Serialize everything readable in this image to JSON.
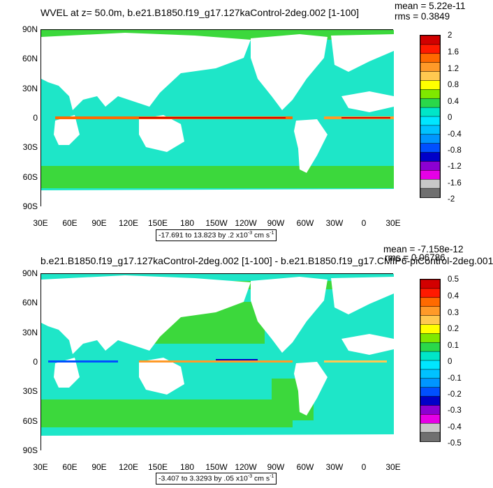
{
  "panels": [
    {
      "title": "WVEL at z=  50.0m, b.e21.B1850.f19_g17.127kaControl-2deg.002 [1-100]",
      "mean": "mean = 5.22e-11",
      "rms": "rms = 0.3849",
      "range_main": "-17.691 to 13.823 by .2 x10",
      "range_exp": "-3",
      "range_unit": " cm s",
      "range_unit_exp": "-1",
      "colorbar_labels": [
        "2",
        "1.6",
        "1.2",
        "0.8",
        "0.4",
        "0",
        "-0.4",
        "-0.8",
        "-1.2",
        "-1.6",
        "-2"
      ],
      "lat_labels": [
        "90N",
        "60N",
        "30N",
        "0",
        "30S",
        "60S",
        "90S"
      ],
      "lon_labels": [
        "30E",
        "60E",
        "90E",
        "120E",
        "150E",
        "180",
        "150W",
        "120W",
        "90W",
        "60W",
        "30W",
        "0",
        "30E"
      ]
    },
    {
      "title": "b.e21.B1850.f19_g17.127kaControl-2deg.002 [1-100] - b.e21.B1850.f19_g17.CMIP6-piControl-2deg.001",
      "mean": "mean = -7.158e-12",
      "rms": "rms = 0.06786",
      "range_main": "-3.407 to 3.3293 by .05 x10",
      "range_exp": "-3",
      "range_unit": " cm s",
      "range_unit_exp": "-1",
      "colorbar_labels": [
        "0.5",
        "0.4",
        "0.3",
        "0.2",
        "0.1",
        "0",
        "-0.1",
        "-0.2",
        "-0.3",
        "-0.4",
        "-0.5"
      ],
      "lat_labels": [
        "90N",
        "60N",
        "30N",
        "0",
        "30S",
        "60S",
        "90S"
      ],
      "lon_labels": [
        "30E",
        "60E",
        "90E",
        "120E",
        "150E",
        "180",
        "150W",
        "120W",
        "90W",
        "60W",
        "30W",
        "0",
        "30E"
      ]
    }
  ],
  "colorbar_colors": [
    "#d20000",
    "#ff1a00",
    "#ff6a00",
    "#ff9a28",
    "#ffc850",
    "#ffff00",
    "#7fe800",
    "#2ad84a",
    "#00e6c8",
    "#00e6ff",
    "#00c2ff",
    "#0096ff",
    "#0050ff",
    "#0000c8",
    "#8c00d2",
    "#e600e6",
    "#c8c8c8",
    "#707070"
  ],
  "colors": {
    "ocean": "#1ee6c8",
    "land": "#ffffff",
    "upwelling": "#3cd83c"
  }
}
